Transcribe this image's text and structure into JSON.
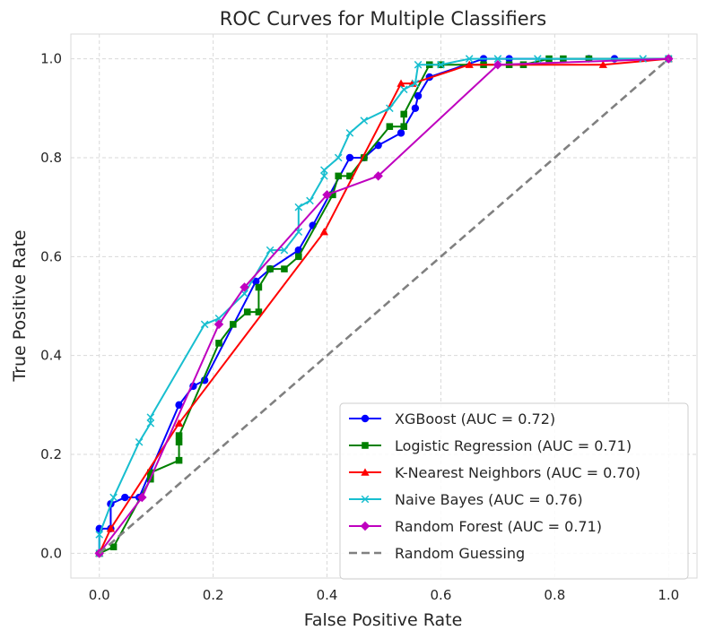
{
  "chart_data": {
    "type": "line",
    "title": "ROC Curves for Multiple Classifiers",
    "xlabel": "False Positive Rate",
    "ylabel": "True Positive Rate",
    "xlim": [
      -0.05,
      1.05
    ],
    "ylim": [
      -0.05,
      1.05
    ],
    "xticks": [
      0.0,
      0.2,
      0.4,
      0.6,
      0.8,
      1.0
    ],
    "yticks": [
      0.0,
      0.2,
      0.4,
      0.6,
      0.8,
      1.0
    ],
    "xtick_labels": [
      "0.0",
      "0.2",
      "0.4",
      "0.6",
      "0.8",
      "1.0"
    ],
    "ytick_labels": [
      "0.0",
      "0.2",
      "0.4",
      "0.6",
      "0.8",
      "1.0"
    ],
    "grid": true,
    "legend_position": "lower-right",
    "series": [
      {
        "name": "XGBoost (AUC = 0.72)",
        "color": "#0000ff",
        "marker": "circle",
        "x": [
          0.0,
          0.0,
          0.02,
          0.02,
          0.045,
          0.07,
          0.14,
          0.165,
          0.185,
          0.275,
          0.3,
          0.35,
          0.375,
          0.44,
          0.465,
          0.49,
          0.53,
          0.555,
          0.56,
          0.58,
          0.675,
          0.72,
          0.86,
          0.905,
          1.0
        ],
        "y": [
          0.0,
          0.05,
          0.05,
          0.1,
          0.113,
          0.113,
          0.3,
          0.338,
          0.35,
          0.55,
          0.575,
          0.613,
          0.663,
          0.8,
          0.8,
          0.825,
          0.85,
          0.9,
          0.925,
          0.963,
          1.0,
          1.0,
          1.0,
          1.0,
          1.0
        ]
      },
      {
        "name": "Logistic Regression (AUC = 0.71)",
        "color": "#008000",
        "marker": "square",
        "x": [
          0.0,
          0.025,
          0.09,
          0.09,
          0.14,
          0.14,
          0.14,
          0.21,
          0.235,
          0.26,
          0.28,
          0.28,
          0.3,
          0.325,
          0.35,
          0.41,
          0.42,
          0.44,
          0.465,
          0.51,
          0.535,
          0.535,
          0.58,
          0.6,
          0.675,
          0.72,
          0.745,
          0.79,
          0.815,
          0.86,
          1.0
        ],
        "y": [
          0.0,
          0.013,
          0.15,
          0.163,
          0.188,
          0.225,
          0.238,
          0.425,
          0.463,
          0.488,
          0.488,
          0.538,
          0.575,
          0.575,
          0.6,
          0.725,
          0.763,
          0.763,
          0.8,
          0.863,
          0.863,
          0.888,
          0.988,
          0.988,
          0.988,
          0.988,
          0.988,
          1.0,
          1.0,
          1.0,
          1.0
        ]
      },
      {
        "name": "K-Nearest Neighbors (AUC = 0.70)",
        "color": "#ff0000",
        "marker": "triangle",
        "x": [
          0.0,
          0.02,
          0.14,
          0.395,
          0.53,
          0.55,
          0.65,
          0.885,
          1.0
        ],
        "y": [
          0.0,
          0.05,
          0.263,
          0.65,
          0.95,
          0.95,
          0.988,
          0.988,
          1.0
        ],
        "x_raw_note": ""
      },
      {
        "name": "Naive Bayes (AUC = 0.76)",
        "color": "#17becf",
        "marker": "x",
        "x": [
          0.0,
          0.0,
          0.025,
          0.07,
          0.09,
          0.09,
          0.185,
          0.21,
          0.255,
          0.3,
          0.325,
          0.35,
          0.35,
          0.37,
          0.395,
          0.395,
          0.42,
          0.44,
          0.465,
          0.51,
          0.535,
          0.555,
          0.56,
          0.6,
          0.65,
          0.7,
          0.77,
          0.955,
          1.0
        ],
        "y": [
          0.0,
          0.038,
          0.113,
          0.225,
          0.263,
          0.275,
          0.463,
          0.475,
          0.525,
          0.613,
          0.613,
          0.65,
          0.7,
          0.713,
          0.763,
          0.775,
          0.8,
          0.85,
          0.875,
          0.9,
          0.938,
          0.95,
          0.988,
          0.988,
          1.0,
          1.0,
          1.0,
          1.0,
          1.0
        ]
      },
      {
        "name": "Random Forest (AUC = 0.71)",
        "color": "#bf00bf",
        "marker": "diamond",
        "x": [
          0.0,
          0.075,
          0.21,
          0.255,
          0.4,
          0.49,
          0.7,
          1.0
        ],
        "y": [
          0.0,
          0.113,
          0.463,
          0.538,
          0.725,
          0.763,
          0.988,
          1.0
        ]
      },
      {
        "name": "Random Guessing",
        "color": "#808080",
        "marker": "none",
        "dashed": true,
        "x": [
          0.0,
          1.0
        ],
        "y": [
          0.0,
          1.0
        ]
      }
    ]
  }
}
